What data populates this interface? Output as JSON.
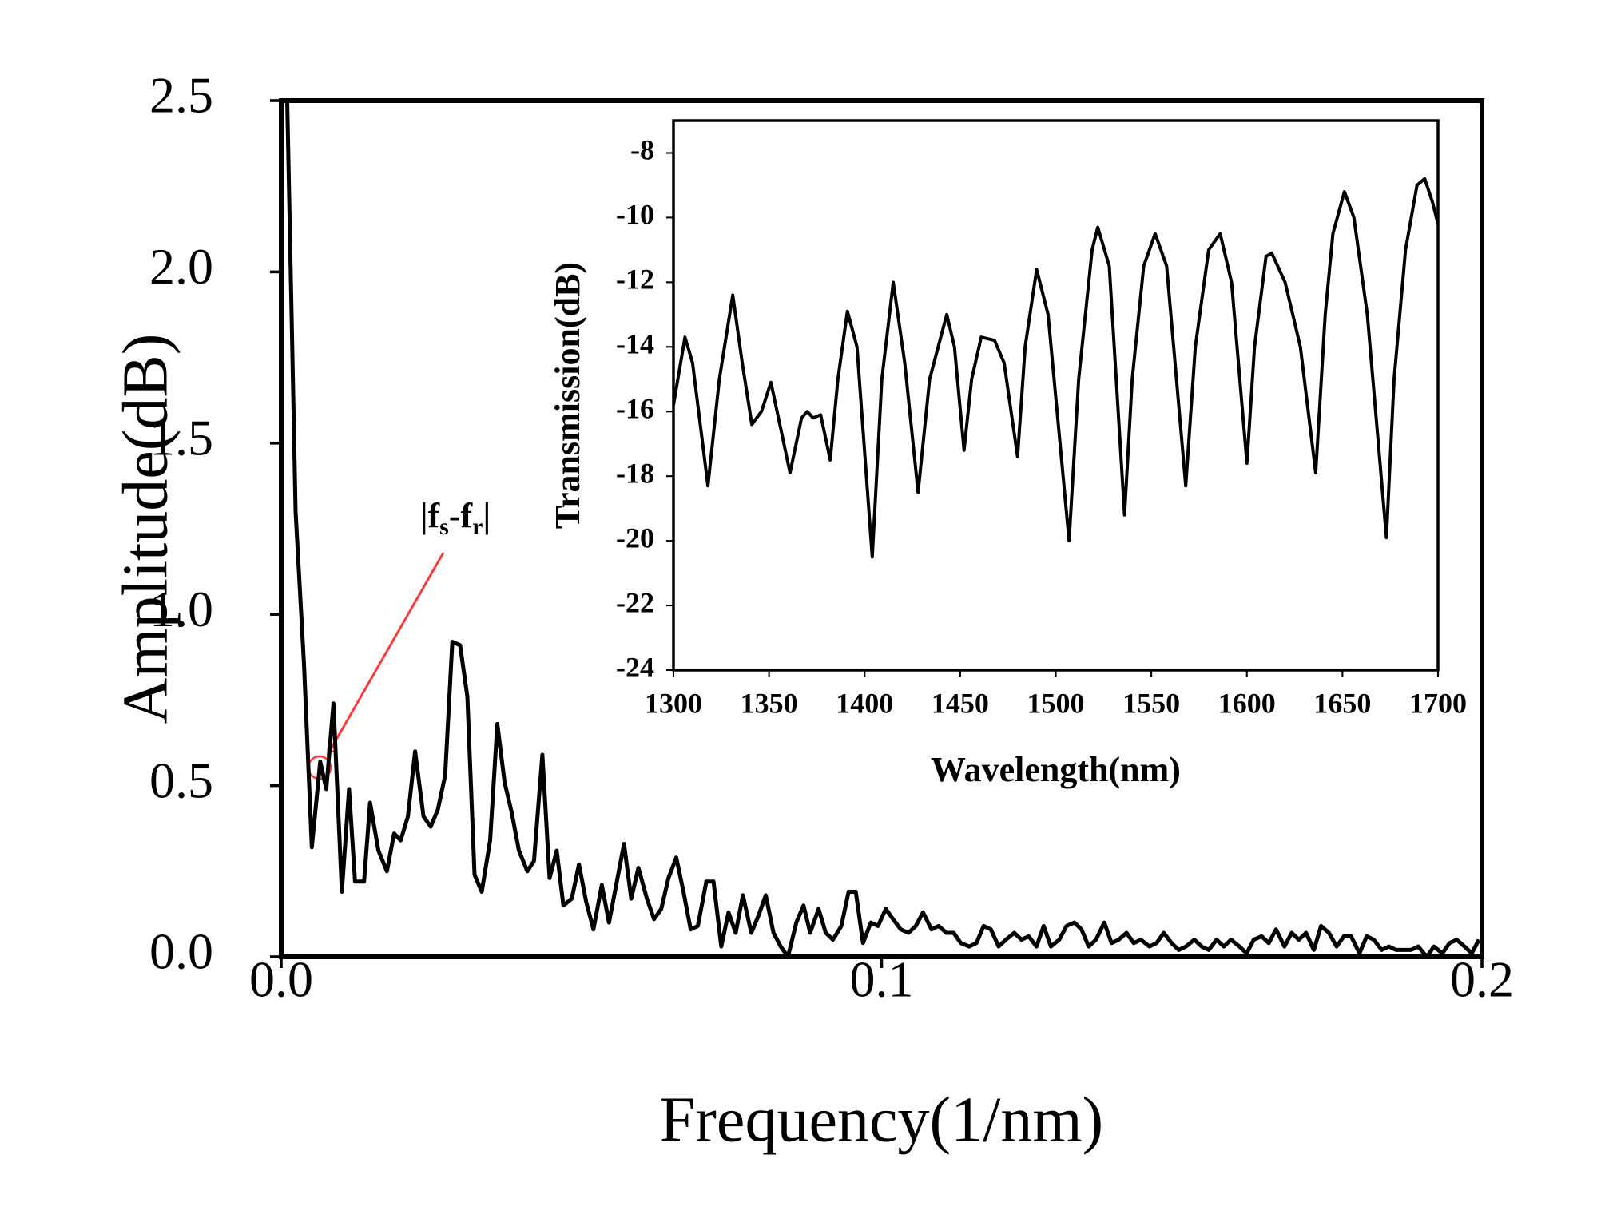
{
  "chart_data": [
    {
      "type": "line",
      "x_label": "Frequency(1/nm)",
      "y_label": "Amplitude(dB)",
      "color": "#000000",
      "annotation": [
        "|f",
        "s",
        "-f",
        "r",
        "|"
      ],
      "xlim": [
        0,
        0.2
      ],
      "ylim": [
        0,
        2.5
      ],
      "xticks": [
        {
          "value": 0,
          "label": "0.0"
        },
        0.1,
        0.2
      ],
      "yticks": [
        {
          "value": 0,
          "label": "0.0"
        },
        0.5,
        {
          "value": 1,
          "label": "1.0"
        },
        1.5,
        {
          "value": 2,
          "label": "2.0"
        },
        2.5
      ],
      "x": [
        0.001,
        0.0024,
        0.0038,
        0.0051,
        0.0065,
        0.0075,
        0.0087,
        0.0101,
        0.0113,
        0.0123,
        0.0138,
        0.0148,
        0.0162,
        0.0176,
        0.0188,
        0.0199,
        0.0211,
        0.0223,
        0.0237,
        0.0249,
        0.0261,
        0.0273,
        0.0285,
        0.0298,
        0.031,
        0.0322,
        0.0334,
        0.0348,
        0.036,
        0.0372,
        0.0384,
        0.0396,
        0.041,
        0.0421,
        0.0435,
        0.0447,
        0.0459,
        0.047,
        0.0484,
        0.0496,
        0.0508,
        0.052,
        0.0534,
        0.0546,
        0.0558,
        0.0571,
        0.0583,
        0.0595,
        0.0609,
        0.0621,
        0.0633,
        0.0645,
        0.0658,
        0.067,
        0.0682,
        0.0694,
        0.0708,
        0.072,
        0.0733,
        0.0745,
        0.0757,
        0.0769,
        0.0783,
        0.0795,
        0.0807,
        0.082,
        0.0832,
        0.0844,
        0.0858,
        0.087,
        0.0881,
        0.0895,
        0.0907,
        0.0919,
        0.0933,
        0.0945,
        0.0957,
        0.0969,
        0.0982,
        0.0994,
        0.1007,
        0.1019,
        0.1032,
        0.1045,
        0.1057,
        0.1069,
        0.1083,
        0.1095,
        0.1108,
        0.112,
        0.1132,
        0.1146,
        0.1158,
        0.117,
        0.1182,
        0.1195,
        0.1207,
        0.1221,
        0.1233,
        0.1245,
        0.1258,
        0.127,
        0.1282,
        0.1296,
        0.1308,
        0.1321,
        0.1333,
        0.1345,
        0.1357,
        0.1371,
        0.1383,
        0.1395,
        0.1408,
        0.142,
        0.1432,
        0.1446,
        0.1458,
        0.147,
        0.1483,
        0.1495,
        0.1507,
        0.1521,
        0.1533,
        0.1545,
        0.1558,
        0.157,
        0.1582,
        0.1596,
        0.1608,
        0.162,
        0.1633,
        0.1645,
        0.1657,
        0.1671,
        0.1683,
        0.1695,
        0.1707,
        0.172,
        0.1732,
        0.1745,
        0.1758,
        0.177,
        0.1782,
        0.1796,
        0.1808,
        0.182,
        0.1833,
        0.1845,
        0.1857,
        0.187,
        0.1882,
        0.1894,
        0.1908,
        0.192,
        0.1934,
        0.1946,
        0.1958,
        0.1971,
        0.1983,
        0.1995
      ],
      "values": [
        2.5,
        1.3,
        0.85,
        0.32,
        0.57,
        0.49,
        0.74,
        0.19,
        0.49,
        0.22,
        0.22,
        0.45,
        0.31,
        0.25,
        0.36,
        0.34,
        0.41,
        0.6,
        0.41,
        0.38,
        0.43,
        0.53,
        0.92,
        0.91,
        0.76,
        0.24,
        0.19,
        0.34,
        0.68,
        0.51,
        0.42,
        0.31,
        0.25,
        0.28,
        0.59,
        0.23,
        0.31,
        0.15,
        0.17,
        0.27,
        0.16,
        0.08,
        0.21,
        0.1,
        0.21,
        0.33,
        0.17,
        0.26,
        0.17,
        0.11,
        0.14,
        0.23,
        0.29,
        0.19,
        0.08,
        0.09,
        0.22,
        0.22,
        0.03,
        0.13,
        0.07,
        0.18,
        0.07,
        0.12,
        0.18,
        0.07,
        0.03,
        0,
        0.1,
        0.15,
        0.07,
        0.14,
        0.07,
        0.05,
        0.09,
        0.19,
        0.19,
        0.04,
        0.1,
        0.09,
        0.14,
        0.11,
        0.08,
        0.07,
        0.09,
        0.13,
        0.08,
        0.09,
        0.07,
        0.07,
        0.04,
        0.03,
        0.04,
        0.09,
        0.08,
        0.03,
        0.05,
        0.07,
        0.05,
        0.06,
        0.03,
        0.09,
        0.03,
        0.05,
        0.09,
        0.1,
        0.08,
        0.03,
        0.05,
        0.1,
        0.04,
        0.05,
        0.07,
        0.04,
        0.05,
        0.03,
        0.04,
        0.07,
        0.04,
        0.02,
        0.03,
        0.05,
        0.03,
        0.02,
        0.05,
        0.03,
        0.05,
        0.03,
        0.01,
        0.05,
        0.06,
        0.04,
        0.08,
        0.03,
        0.07,
        0.05,
        0.07,
        0.02,
        0.09,
        0.07,
        0.03,
        0.06,
        0.06,
        0.01,
        0.06,
        0.05,
        0.02,
        0.03,
        0.02,
        0.02,
        0.02,
        0.03,
        0,
        0.03,
        0.01,
        0.04,
        0.05,
        0.03,
        0.01,
        0.05
      ]
    },
    {
      "type": "line",
      "x_label": "Wavelength(nm)",
      "y_label": "Transmission(dB)",
      "color": "#000000",
      "xlim": [
        1300,
        1700
      ],
      "ylim": [
        -24,
        -7
      ],
      "xticks": [
        1300,
        1350,
        1400,
        1450,
        1500,
        1550,
        1600,
        1650,
        1700
      ],
      "yticks": [
        -24,
        -22,
        -20,
        -18,
        -16,
        -14,
        -12,
        -10,
        -8
      ],
      "x": [
        1300,
        1306,
        1310,
        1318,
        1324,
        1331,
        1336,
        1341,
        1346,
        1351,
        1356,
        1361,
        1367,
        1370,
        1373,
        1377,
        1382,
        1386,
        1391,
        1396,
        1404,
        1409,
        1415,
        1421,
        1428,
        1434,
        1443,
        1447,
        1452,
        1456,
        1461,
        1468,
        1473,
        1480,
        1484,
        1490,
        1496,
        1507,
        1512,
        1519,
        1522,
        1528,
        1536,
        1540,
        1546,
        1552,
        1558,
        1568,
        1573,
        1580,
        1586,
        1592,
        1600,
        1604,
        1610,
        1613,
        1620,
        1628,
        1636,
        1641,
        1645,
        1651,
        1656,
        1663,
        1673,
        1677,
        1683,
        1689,
        1693,
        1697,
        1700
      ],
      "values": [
        -15.8,
        -13.7,
        -14.5,
        -18.3,
        -15,
        -12.4,
        -14.5,
        -16.4,
        -16,
        -15.1,
        -16.5,
        -17.9,
        -16.2,
        -16,
        -16.2,
        -16.1,
        -17.5,
        -15,
        -12.9,
        -14,
        -20.5,
        -15,
        -12,
        -14.5,
        -18.5,
        -15,
        -13,
        -14,
        -17.2,
        -15,
        -13.7,
        -13.8,
        -14.5,
        -17.4,
        -14,
        -11.6,
        -13,
        -20,
        -15,
        -11,
        -10.3,
        -11.5,
        -19.2,
        -15,
        -11.5,
        -10.5,
        -11.5,
        -18.3,
        -14,
        -11,
        -10.5,
        -12,
        -17.6,
        -14,
        -11.2,
        -11.1,
        -12,
        -14,
        -17.9,
        -13,
        -10.5,
        -9.2,
        -10,
        -13,
        -19.9,
        -15,
        -11,
        -9,
        -8.8,
        -9.5,
        -10.2
      ]
    }
  ]
}
